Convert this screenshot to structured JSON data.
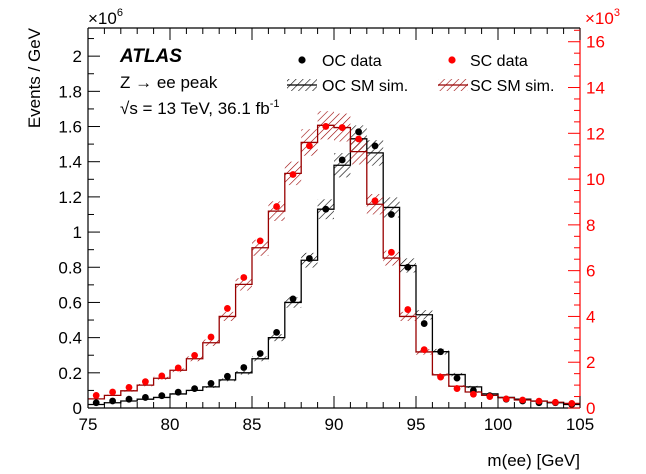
{
  "chart_data": {
    "type": "line",
    "title": "",
    "xlabel": "m(ee) [GeV]",
    "ylabel": "Events / GeV",
    "xlim": [
      75,
      105
    ],
    "ylim_left": [
      0,
      2.16
    ],
    "ylim_right": [
      0,
      16.6
    ],
    "left_axis_color": "#000000",
    "right_axis_color": "#ff0000",
    "left_multiplier_base": "×10",
    "left_multiplier_exp": "6",
    "right_multiplier_base": "×10",
    "right_multiplier_exp": "3",
    "x_ticks": [
      "75",
      "80",
      "85",
      "90",
      "95",
      "100",
      "105"
    ],
    "y_left_ticks": [
      "0",
      "0.2",
      "0.4",
      "0.6",
      "0.8",
      "1",
      "1.2",
      "1.4",
      "1.6",
      "1.8",
      "2"
    ],
    "y_right_ticks": [
      "0",
      "2",
      "4",
      "6",
      "8",
      "10",
      "12",
      "14",
      "16"
    ],
    "grid": false,
    "legend_position": "top-right",
    "annotations": {
      "experiment": "ATLAS",
      "line1": "Z → ee peak",
      "energy_prefix": "√s = 13 TeV, 36.1 fb",
      "energy_exp": "-1"
    },
    "bin_edges": [
      75,
      76,
      77,
      78,
      79,
      80,
      81,
      82,
      83,
      84,
      85,
      86,
      87,
      88,
      89,
      90,
      91,
      92,
      93,
      94,
      95,
      96,
      97,
      98,
      99,
      100,
      101,
      102,
      103,
      104,
      105
    ],
    "series": [
      {
        "name": "OC data",
        "kind": "points",
        "axis": "left",
        "color": "#000000",
        "x": [
          75.5,
          76.5,
          77.5,
          78.5,
          79.5,
          80.5,
          81.5,
          82.5,
          83.5,
          84.5,
          85.5,
          86.5,
          87.5,
          88.5,
          89.5,
          90.5,
          91.5,
          92.5,
          93.5,
          94.5,
          95.5,
          96.5,
          97.5,
          98.5,
          99.5,
          100.5,
          101.5,
          102.5,
          103.5,
          104.5
        ],
        "y": [
          0.03,
          0.04,
          0.05,
          0.06,
          0.07,
          0.09,
          0.11,
          0.14,
          0.18,
          0.23,
          0.31,
          0.43,
          0.62,
          0.85,
          1.13,
          1.41,
          1.57,
          1.49,
          1.1,
          0.8,
          0.48,
          0.32,
          0.17,
          0.1,
          0.07,
          0.05,
          0.04,
          0.03,
          0.03,
          0.02
        ]
      },
      {
        "name": "SC data",
        "kind": "points",
        "axis": "right",
        "color": "#ff0000",
        "x": [
          75.5,
          76.5,
          77.5,
          78.5,
          79.5,
          80.5,
          81.5,
          82.5,
          83.5,
          84.5,
          85.5,
          86.5,
          87.5,
          88.5,
          89.5,
          90.5,
          91.5,
          92.5,
          93.5,
          94.5,
          95.5,
          96.5,
          97.5,
          98.5,
          99.5,
          100.5,
          101.5,
          102.5,
          103.5,
          104.5
        ],
        "y": [
          0.55,
          0.7,
          0.9,
          1.15,
          1.4,
          1.75,
          2.3,
          3.1,
          4.35,
          5.7,
          7.3,
          8.8,
          10.2,
          11.45,
          12.3,
          12.25,
          11.75,
          9.05,
          6.8,
          4.3,
          2.55,
          1.35,
          0.85,
          0.6,
          0.5,
          0.4,
          0.35,
          0.3,
          0.25,
          0.2
        ]
      },
      {
        "name": "OC SM sim.",
        "kind": "step",
        "axis": "left",
        "color": "#000000",
        "values": [
          0.02,
          0.03,
          0.04,
          0.05,
          0.06,
          0.08,
          0.1,
          0.12,
          0.16,
          0.2,
          0.28,
          0.4,
          0.6,
          0.84,
          1.13,
          1.38,
          1.53,
          1.45,
          1.14,
          0.81,
          0.53,
          0.32,
          0.19,
          0.12,
          0.08,
          0.06,
          0.05,
          0.04,
          0.03,
          0.02
        ]
      },
      {
        "name": "SC SM sim.",
        "kind": "step",
        "axis": "right",
        "color": "#990000",
        "values": [
          0.4,
          0.55,
          0.75,
          1.0,
          1.3,
          1.65,
          2.15,
          2.85,
          4.0,
          5.4,
          7.0,
          8.6,
          10.25,
          11.6,
          12.35,
          12.25,
          11.2,
          8.9,
          6.55,
          4.0,
          2.45,
          1.45,
          0.95,
          0.7,
          0.55,
          0.45,
          0.35,
          0.3,
          0.25,
          0.2
        ]
      }
    ]
  }
}
